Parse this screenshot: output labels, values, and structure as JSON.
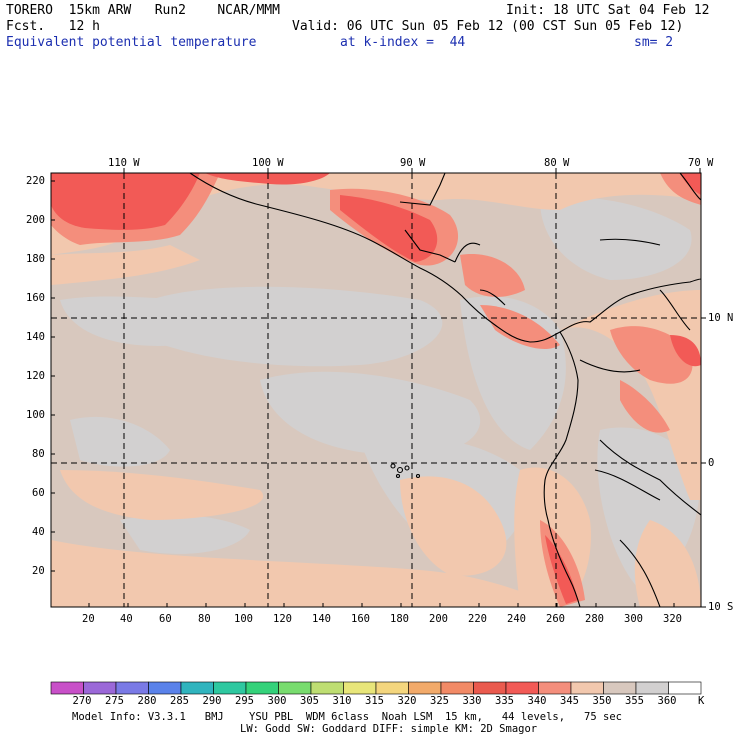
{
  "header": {
    "model": "TORERO  15km ARW   Run2    NCAR/MMM",
    "init": "Init: 18 UTC Sat 04 Feb 12",
    "fcst": "Fcst.   12 h",
    "valid": "Valid: 06 UTC Sun 05 Feb 12 (00 CST Sun 05 Feb 12)",
    "field": "Equivalent potential temperature",
    "level": "at k-index =  44",
    "smooth": "sm= 2"
  },
  "axes": {
    "lon_labels": [
      "110 W",
      "100 W",
      "90 W",
      "80 W",
      "70 W"
    ],
    "lat_labels": [
      "10 N",
      "0",
      "10 S"
    ],
    "y_ticks": [
      "220",
      "200",
      "180",
      "160",
      "140",
      "120",
      "100",
      "80",
      "60",
      "40",
      "20"
    ],
    "x_ticks": [
      "20",
      "40",
      "60",
      "80",
      "100",
      "120",
      "140",
      "160",
      "180",
      "200",
      "220",
      "240",
      "260",
      "280",
      "300",
      "320"
    ]
  },
  "colorbar": {
    "unit": "K",
    "labels": [
      "270",
      "275",
      "280",
      "285",
      "290",
      "295",
      "300",
      "305",
      "310",
      "315",
      "320",
      "325",
      "330",
      "335",
      "340",
      "345",
      "350",
      "355",
      "360"
    ],
    "colors": [
      "#c850c8",
      "#9b68d8",
      "#7a7ae6",
      "#5a82ea",
      "#30b4be",
      "#2ec8a0",
      "#34d27a",
      "#78dc6e",
      "#bede72",
      "#e8e67a",
      "#f4d67e",
      "#f2aa6a",
      "#f28a66",
      "#ea5a4e",
      "#f25a56",
      "#f48e7c",
      "#f2c8ae",
      "#d8c8be",
      "#d2d0d0",
      "#ffffff"
    ]
  },
  "footer": {
    "line1": "Model Info: V3.3.1   BMJ    YSU PBL  WDM 6class  Noah LSM  15 km,   44 levels,   75 sec",
    "line2": "LW: Godd SW: Goddard DIFF: simple KM: 2D Smagor"
  },
  "colors": {
    "ocean": "#d8c8be",
    "low": "#d2d0d0",
    "warm": "#f2c8ae",
    "warmer": "#f48e7c",
    "hot": "#f25a56"
  }
}
